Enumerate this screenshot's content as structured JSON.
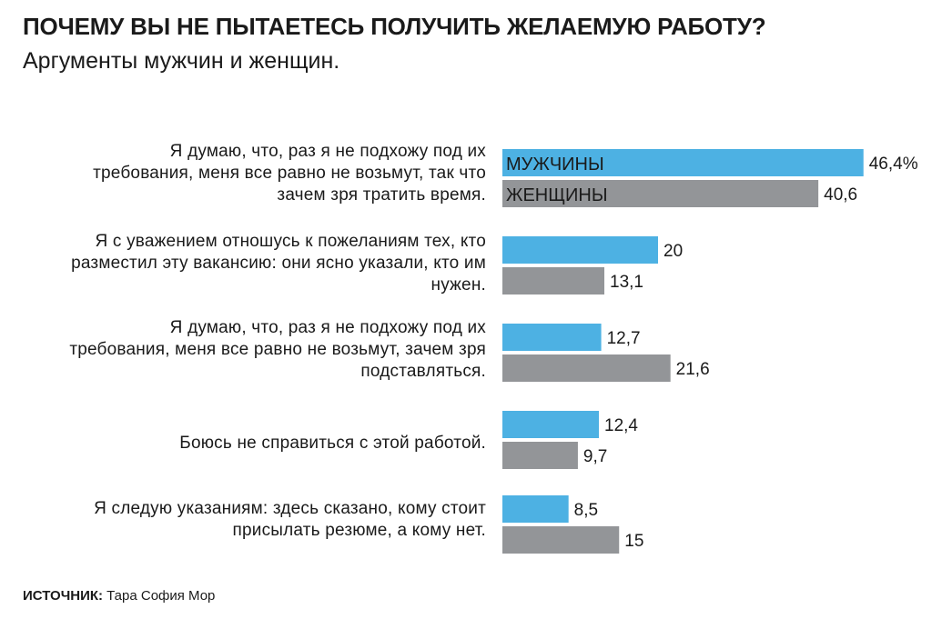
{
  "header": {
    "title": "ПОЧЕМУ ВЫ НЕ ПЫТАЕТЕСЬ ПОЛУЧИТЬ ЖЕЛАЕМУЮ РАБОТУ?",
    "subtitle": "Аргументы мужчин и женщин."
  },
  "footer": {
    "source_label": "ИСТОЧНИК:",
    "source_text": " Тара София Мор"
  },
  "colors": {
    "men": "#4db1e3",
    "women": "#939598"
  },
  "chart_data": {
    "type": "bar",
    "orientation": "horizontal",
    "categories": [
      "Я думаю, что, раз я не подхожу под их требования, меня все равно не возьмут, так что зачем зря тратить время.",
      "Я с уважением отношусь к пожеланиям тех, кто разместил эту вакансию: они ясно указали, кто им нужен.",
      "Я думаю, что, раз я не подхожу под их требования, меня все равно не возьмут, зачем зря подставляться.",
      "Боюсь не справиться с этой работой.",
      "Я следую указаниям: здесь сказано, кому стоит присылать резюме, а кому нет."
    ],
    "category_lines": [
      [
        "Я думаю, что, раз я не подхожу под их",
        "требования, меня все равно не возьмут, так что",
        "зачем зря тратить время."
      ],
      [
        "Я с уважением отношусь к пожеланиям тех, кто",
        "разместил эту вакансию: они ясно указали, кто им",
        "нужен."
      ],
      [
        "Я думаю, что, раз я не подхожу под их",
        "требования, меня все равно не возьмут, зачем зря",
        "подставляться."
      ],
      [
        "Боюсь не справиться с этой работой."
      ],
      [
        "Я следую указаниям: здесь сказано, кому стоит",
        "присылать резюме, а кому нет."
      ]
    ],
    "series": [
      {
        "name": "МУЖЧИНЫ",
        "values": [
          46.4,
          20,
          12.7,
          12.4,
          8.5
        ],
        "labels": [
          "46,4%",
          "20",
          "12,7",
          "12,4",
          "8,5"
        ]
      },
      {
        "name": "ЖЕНЩИНЫ",
        "values": [
          40.6,
          13.1,
          21.6,
          9.7,
          15
        ],
        "labels": [
          "40,6",
          "13,1",
          "21,6",
          "9,7",
          "15"
        ]
      }
    ],
    "legend": "inside-first-bars",
    "grid": false,
    "axes": false
  }
}
